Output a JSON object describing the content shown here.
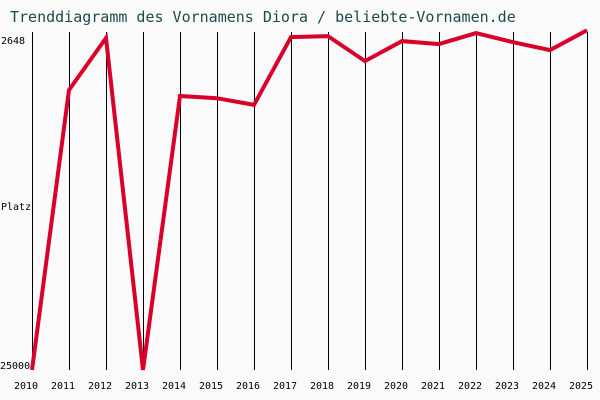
{
  "title": "Trenddiagramm des Vornamens Diora / beliebte-Vornamen.de",
  "y_axis": {
    "label": "Platz",
    "top_label": "2648",
    "bottom_label": "25000"
  },
  "colors": {
    "line": "#d9002a",
    "grid": "#000000",
    "title": "#1f4a4a",
    "background": "#fafafa"
  },
  "chart_data": {
    "type": "line",
    "title": "Trenddiagramm des Vornamens Diora / beliebte-Vornamen.de",
    "xlabel": "",
    "ylabel": "Platz",
    "y_inverted": true,
    "ylim": [
      25000,
      2648
    ],
    "grid": "vertical",
    "categories": [
      "2010",
      "2011",
      "2012",
      "2013",
      "2014",
      "2015",
      "2016",
      "2017",
      "2018",
      "2019",
      "2020",
      "2021",
      "2022",
      "2023",
      "2024",
      "2025"
    ],
    "series": [
      {
        "name": "Diora",
        "values": [
          25000,
          6150,
          2648,
          25000,
          6550,
          6700,
          7150,
          2590,
          2520,
          4200,
          2860,
          3060,
          2320,
          2930,
          3460,
          2120
        ]
      }
    ]
  }
}
